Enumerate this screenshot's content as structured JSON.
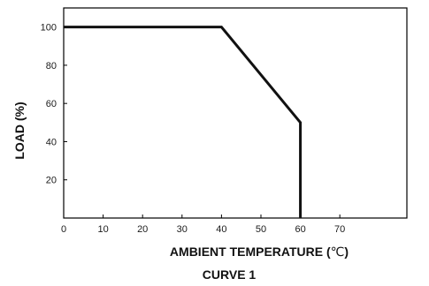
{
  "chart_data": {
    "type": "line",
    "title": "",
    "caption": "CURVE 1",
    "xlabel_main": "AMBIENT  TEMPERATURE (",
    "xlabel_unit": "℃",
    "xlabel_close": ")",
    "ylabel": "LOAD (%)",
    "x_ticks": [
      0,
      10,
      20,
      30,
      40,
      50,
      60,
      70
    ],
    "y_ticks": [
      20,
      40,
      60,
      80,
      100
    ],
    "xlim": [
      0,
      87
    ],
    "ylim": [
      0,
      110
    ],
    "grid": false,
    "legend": "none",
    "series": [
      {
        "x": [
          0,
          40,
          60,
          60
        ],
        "y": [
          100,
          100,
          50,
          0
        ]
      }
    ],
    "colors": {
      "line": "#111111",
      "axis": "#000000"
    }
  }
}
